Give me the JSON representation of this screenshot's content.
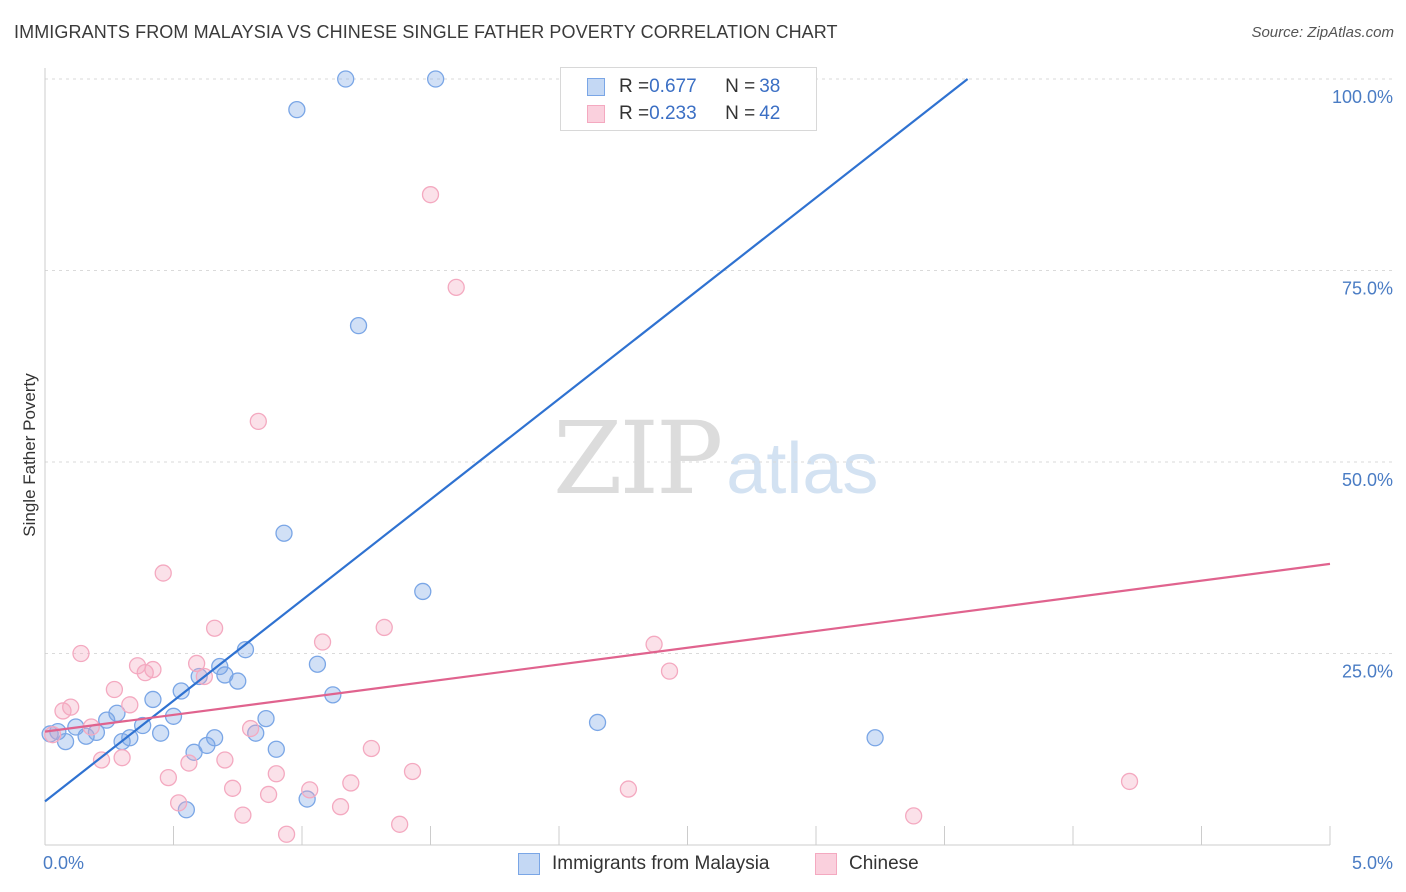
{
  "header": {
    "title": "IMMIGRANTS FROM MALAYSIA VS CHINESE SINGLE FATHER POVERTY CORRELATION CHART",
    "source": "Source: ZipAtlas.com"
  },
  "watermark": {
    "zip": "ZIP",
    "atlas": "atlas"
  },
  "stats": [
    {
      "r_label": "R = ",
      "r_value": "0.677",
      "n_label": "N = ",
      "n_value": "38"
    },
    {
      "r_label": "R = ",
      "r_value": "0.233",
      "n_label": "N = ",
      "n_value": "42"
    }
  ],
  "chart_data": {
    "type": "scatter",
    "title": "IMMIGRANTS FROM MALAYSIA VS CHINESE SINGLE FATHER POVERTY CORRELATION CHART",
    "xlabel": "",
    "ylabel": "Single Father Poverty",
    "xlim": [
      0,
      5
    ],
    "ylim": [
      0,
      100
    ],
    "x_tick_labels": [
      "0.0%",
      "5.0%"
    ],
    "y_tick_values": [
      25,
      50,
      75,
      100
    ],
    "y_tick_labels": [
      "25.0%",
      "50.0%",
      "75.0%",
      "100.0%"
    ],
    "grid": "horizontal-dashed",
    "legend_position": "bottom",
    "series": [
      {
        "name": "Immigrants from Malaysia",
        "color": "#7aa6e6",
        "line_color": "#2f72d1",
        "trend": [
          [
            0,
            5.7
          ],
          [
            3.59,
            100
          ]
        ],
        "x": [
          0.02,
          0.05,
          0.08,
          0.12,
          0.16,
          0.2,
          0.24,
          0.28,
          0.3,
          0.33,
          0.38,
          0.42,
          0.45,
          0.5,
          0.53,
          0.55,
          0.58,
          0.6,
          0.63,
          0.66,
          0.68,
          0.7,
          0.75,
          0.78,
          0.82,
          0.86,
          0.9,
          0.93,
          0.98,
          1.02,
          1.06,
          1.12,
          1.17,
          1.22,
          1.47,
          1.52,
          2.15,
          3.23
        ],
        "y": [
          14.5,
          14.8,
          13.5,
          15.4,
          14.2,
          14.7,
          16.3,
          17.2,
          13.5,
          14.0,
          15.6,
          19.0,
          14.6,
          16.8,
          20.1,
          4.6,
          12.1,
          22.0,
          13.0,
          14.0,
          23.3,
          22.2,
          21.4,
          25.5,
          14.6,
          16.5,
          12.5,
          40.7,
          96.0,
          6.0,
          23.6,
          19.6,
          100,
          67.8,
          33.1,
          100,
          16.0,
          14.0
        ]
      },
      {
        "name": "Chinese",
        "color": "#f4a9c0",
        "line_color": "#e0638e",
        "trend": [
          [
            0,
            14.8
          ],
          [
            5,
            36.7
          ]
        ],
        "x": [
          0.03,
          0.07,
          0.1,
          0.14,
          0.18,
          0.22,
          0.27,
          0.3,
          0.33,
          0.36,
          0.39,
          0.42,
          0.46,
          0.48,
          0.52,
          0.56,
          0.59,
          0.62,
          0.66,
          0.7,
          0.73,
          0.77,
          0.8,
          0.83,
          0.87,
          0.9,
          0.94,
          1.03,
          1.08,
          1.15,
          1.19,
          1.27,
          1.32,
          1.43,
          1.5,
          1.6,
          2.27,
          2.37,
          2.43,
          3.38,
          4.22,
          1.38
        ],
        "y": [
          14.4,
          17.5,
          18.0,
          25.0,
          15.4,
          11.1,
          20.3,
          11.4,
          18.3,
          23.4,
          22.5,
          22.9,
          35.5,
          8.8,
          5.5,
          10.7,
          23.7,
          22.0,
          28.3,
          11.1,
          7.4,
          3.9,
          15.2,
          55.3,
          6.6,
          9.3,
          1.4,
          7.2,
          26.5,
          5.0,
          8.1,
          12.6,
          28.4,
          9.6,
          84.9,
          72.8,
          7.3,
          26.2,
          22.7,
          3.8,
          8.3,
          2.7
        ]
      }
    ]
  }
}
